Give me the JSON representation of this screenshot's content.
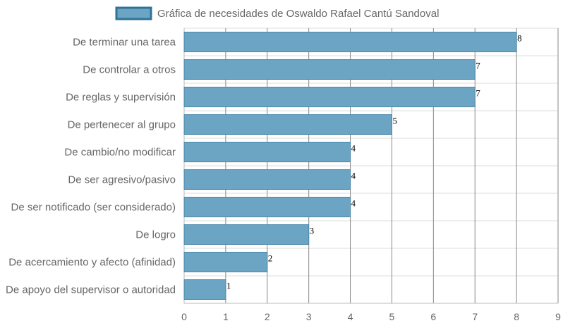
{
  "chart_data": {
    "type": "bar",
    "orientation": "horizontal",
    "series": [
      {
        "name": "Gráfica de necesidades de Oswaldo Rafael Cantú Sandoval",
        "values": [
          8,
          7,
          7,
          5,
          4,
          4,
          4,
          3,
          2,
          1
        ]
      }
    ],
    "categories": [
      "De terminar una tarea",
      "De controlar a otros",
      "De reglas y supervisión",
      "De pertenecer al grupo",
      "De cambio/no modificar",
      "De ser agresivo/pasivo",
      "De ser notificado (ser considerado)",
      "De logro",
      "De acercamiento y afecto (afinidad)",
      "De apoyo del supervisor o autoridad"
    ],
    "x_ticks": [
      "0",
      "1",
      "2",
      "3",
      "4",
      "5",
      "6",
      "7",
      "8",
      "9"
    ],
    "xlim": [
      0,
      9
    ],
    "grid": true,
    "legend_position": "top",
    "colors": {
      "bar_fill": "#6ba5c3",
      "bar_stroke": "#4a87a8",
      "legend_fill": "#6ba5c3",
      "legend_stroke": "#2e7398",
      "grid": "#dddddd",
      "grid_vertical": "#888888"
    }
  }
}
